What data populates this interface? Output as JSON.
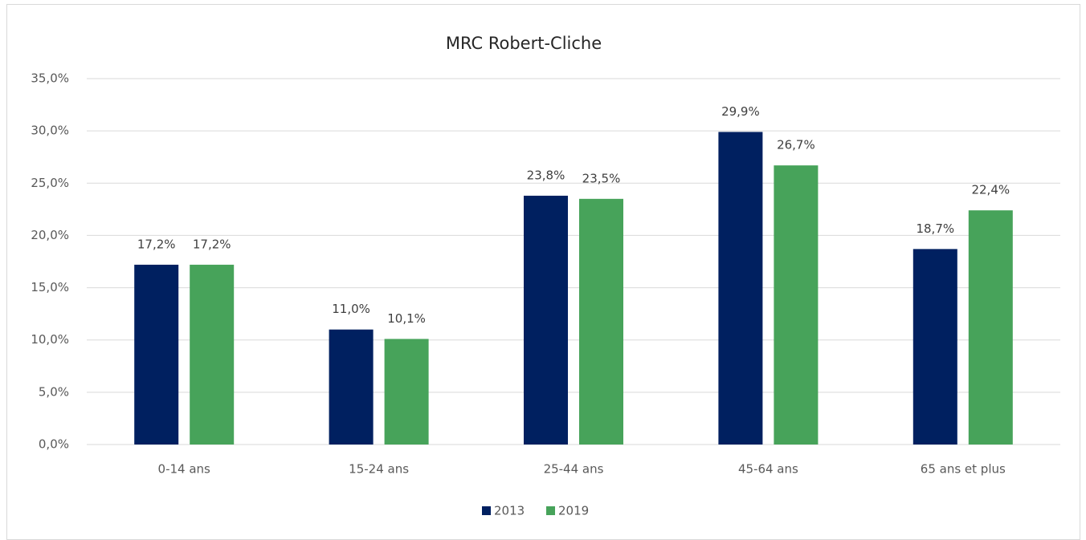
{
  "chart_data": {
    "type": "bar",
    "title": "MRC Robert-Cliche",
    "categories": [
      "0-14 ans",
      "15-24 ans",
      "25-44 ans",
      "45-64 ans",
      "65 ans et plus"
    ],
    "series": [
      {
        "name": "2013",
        "color": "#002060",
        "values": [
          17.2,
          11.0,
          23.8,
          29.9,
          18.7
        ],
        "value_labels": [
          "17,2%",
          "11,0%",
          "23,8%",
          "29,9%",
          "18,7%"
        ]
      },
      {
        "name": "2019",
        "color": "#47a35a",
        "values": [
          17.2,
          10.1,
          23.5,
          26.7,
          22.4
        ],
        "value_labels": [
          "17,2%",
          "10,1%",
          "23,5%",
          "26,7%",
          "22,4%"
        ]
      }
    ],
    "ylim": [
      0,
      35
    ],
    "yticks": [
      {
        "value": 0,
        "label": "0,0%"
      },
      {
        "value": 5,
        "label": "5,0%"
      },
      {
        "value": 10,
        "label": "10,0%"
      },
      {
        "value": 15,
        "label": "15,0%"
      },
      {
        "value": 20,
        "label": "20,0%"
      },
      {
        "value": 25,
        "label": "25,0%"
      },
      {
        "value": 30,
        "label": "30,0%"
      },
      {
        "value": 35,
        "label": "35,0%"
      }
    ],
    "grid": true,
    "legend": "bottom"
  }
}
